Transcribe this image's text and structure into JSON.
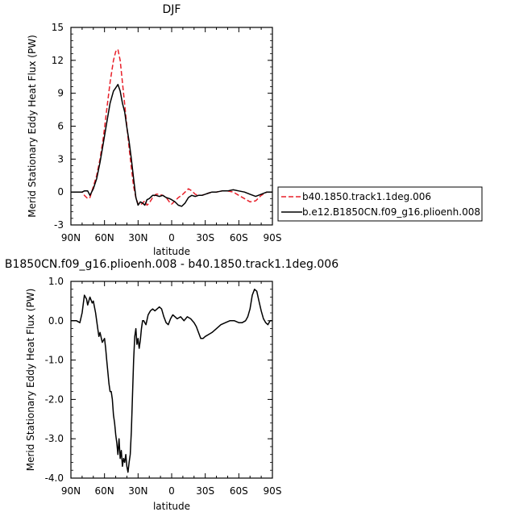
{
  "chart_data": [
    {
      "type": "line",
      "title": "DJF",
      "xlabel": "latitude",
      "ylabel": "Merid Stationary Eddy Heat Flux (PW)",
      "xlim": [
        90,
        -90
      ],
      "ylim": [
        -3,
        15
      ],
      "x_ticks": [
        90,
        60,
        30,
        0,
        -30,
        -60,
        -90
      ],
      "x_tick_labels": [
        "90N",
        "60N",
        "30N",
        "0",
        "30S",
        "60S",
        "90S"
      ],
      "y_ticks": [
        -3,
        0,
        3,
        6,
        9,
        12,
        15
      ],
      "y_tick_labels": [
        "-3",
        "0",
        "3",
        "6",
        "9",
        "12",
        "15"
      ],
      "legend_position": "right",
      "series": [
        {
          "name": "b40.1850.track1.1deg.006",
          "color": "#e8202a",
          "dash": "dashed",
          "x": [
            90,
            85,
            80,
            78,
            75,
            73,
            70,
            67,
            64,
            61,
            58,
            55,
            52,
            50,
            48,
            46,
            44,
            42,
            40,
            38,
            36,
            34,
            32,
            30,
            28,
            26,
            24,
            22,
            20,
            17,
            14,
            11,
            8,
            5,
            2,
            0,
            -3,
            -6,
            -9,
            -12,
            -15,
            -18,
            -21,
            -24,
            -27,
            -30,
            -33,
            -36,
            -40,
            -45,
            -50,
            -55,
            -60,
            -65,
            -70,
            -75,
            -80,
            -85,
            -90
          ],
          "y": [
            0,
            0,
            0,
            -0.3,
            -0.6,
            -0.5,
            0.5,
            1.5,
            3,
            5,
            7.5,
            10,
            12,
            12.8,
            13,
            12,
            10,
            8,
            6,
            4,
            2.2,
            0.5,
            -0.5,
            -1.1,
            -1.2,
            -1.0,
            -0.8,
            -1.2,
            -1.0,
            -0.5,
            -0.2,
            -0.2,
            -0.3,
            -0.5,
            -0.9,
            -1.1,
            -0.8,
            -0.5,
            -0.3,
            0.0,
            0.3,
            0.1,
            -0.2,
            -0.3,
            -0.3,
            -0.2,
            -0.1,
            0.0,
            0.0,
            0.1,
            0.1,
            0.0,
            -0.3,
            -0.6,
            -0.9,
            -0.8,
            -0.3,
            0.0,
            0
          ]
        },
        {
          "name": "b.e12.B1850CN.f09_g16.plioenh.008",
          "color": "#000000",
          "dash": "solid",
          "x": [
            90,
            85,
            80,
            78,
            75,
            73,
            70,
            67,
            64,
            61,
            58,
            55,
            52,
            50,
            48,
            46,
            44,
            42,
            40,
            38,
            36,
            34,
            32,
            30,
            28,
            26,
            24,
            22,
            20,
            17,
            14,
            11,
            8,
            5,
            2,
            0,
            -3,
            -6,
            -9,
            -12,
            -15,
            -18,
            -21,
            -24,
            -27,
            -30,
            -33,
            -36,
            -40,
            -45,
            -50,
            -55,
            -60,
            -65,
            -70,
            -75,
            -80,
            -85,
            -90
          ],
          "y": [
            0,
            0,
            0,
            0.1,
            0.1,
            -0.3,
            0.3,
            1.2,
            2.7,
            4.5,
            6.3,
            8.1,
            9.2,
            9.5,
            9.8,
            9.2,
            8.1,
            7.3,
            5.9,
            4.6,
            3.0,
            1.2,
            -0.5,
            -1.2,
            -0.9,
            -1.0,
            -1.2,
            -0.7,
            -0.6,
            -0.3,
            -0.3,
            -0.4,
            -0.3,
            -0.5,
            -0.6,
            -0.7,
            -0.9,
            -1.2,
            -1.3,
            -1.0,
            -0.5,
            -0.3,
            -0.4,
            -0.3,
            -0.3,
            -0.2,
            -0.1,
            0.0,
            0.0,
            0.1,
            0.1,
            0.2,
            0.1,
            0.0,
            -0.2,
            -0.4,
            -0.2,
            0.0,
            0
          ]
        }
      ]
    },
    {
      "type": "line",
      "title": "B1850CN.f09_g16.plioenh.008 - b40.1850.track1.1deg.006",
      "xlabel": "latitude",
      "ylabel": "Merid Stationary Eddy Heat Flux (PW)",
      "xlim": [
        90,
        -90
      ],
      "ylim": [
        -4,
        1
      ],
      "x_ticks": [
        90,
        60,
        30,
        0,
        -30,
        -60,
        -90
      ],
      "x_tick_labels": [
        "90N",
        "60N",
        "30N",
        "0",
        "30S",
        "60S",
        "90S"
      ],
      "y_ticks": [
        -4,
        -3,
        -2,
        -1,
        0,
        1
      ],
      "y_tick_labels": [
        "-4.0",
        "-3.0",
        "-2.0",
        "-1.0",
        "0.0",
        "1.0"
      ],
      "series": [
        {
          "color": "#000000",
          "dash": "solid",
          "x": [
            90,
            85,
            82,
            80,
            78,
            76,
            75,
            73,
            71,
            70,
            68,
            66,
            65,
            64,
            62,
            60,
            59,
            58,
            57,
            56,
            55,
            54,
            53,
            52,
            51,
            50,
            49,
            48,
            47,
            46,
            45,
            44,
            43,
            42,
            41,
            40,
            39,
            38,
            37,
            36,
            35,
            34,
            33,
            32,
            31,
            30,
            29,
            28,
            27,
            26,
            25,
            23,
            21,
            19,
            17,
            15,
            13,
            11,
            9,
            7,
            5,
            3,
            1,
            -1,
            -3,
            -5,
            -8,
            -11,
            -14,
            -17,
            -20,
            -22,
            -24,
            -26,
            -28,
            -30,
            -33,
            -36,
            -40,
            -44,
            -48,
            -52,
            -56,
            -60,
            -63,
            -66,
            -68,
            -70,
            -72,
            -74,
            -76,
            -78,
            -80,
            -82,
            -84,
            -86,
            -88,
            -90
          ],
          "y": [
            0.0,
            0.0,
            -0.05,
            0.2,
            0.65,
            0.55,
            0.4,
            0.6,
            0.45,
            0.5,
            0.2,
            -0.2,
            -0.4,
            -0.3,
            -0.55,
            -0.45,
            -0.7,
            -1.0,
            -1.3,
            -1.6,
            -1.8,
            -1.8,
            -2.0,
            -2.4,
            -2.6,
            -2.9,
            -3.1,
            -3.4,
            -3.0,
            -3.5,
            -3.3,
            -3.7,
            -3.5,
            -3.6,
            -3.4,
            -3.7,
            -3.85,
            -3.6,
            -3.4,
            -2.8,
            -1.9,
            -1.0,
            -0.4,
            -0.2,
            -0.6,
            -0.45,
            -0.7,
            -0.5,
            -0.2,
            0.0,
            0.0,
            -0.1,
            0.15,
            0.25,
            0.3,
            0.25,
            0.3,
            0.35,
            0.3,
            0.1,
            -0.05,
            -0.1,
            0.05,
            0.15,
            0.1,
            0.05,
            0.1,
            0.0,
            0.1,
            0.05,
            -0.05,
            -0.15,
            -0.3,
            -0.45,
            -0.45,
            -0.4,
            -0.35,
            -0.3,
            -0.2,
            -0.1,
            -0.05,
            0.0,
            0.0,
            -0.05,
            -0.05,
            0.0,
            0.1,
            0.3,
            0.65,
            0.8,
            0.75,
            0.5,
            0.25,
            0.05,
            -0.05,
            -0.1,
            0.0,
            0.0
          ]
        }
      ]
    }
  ]
}
